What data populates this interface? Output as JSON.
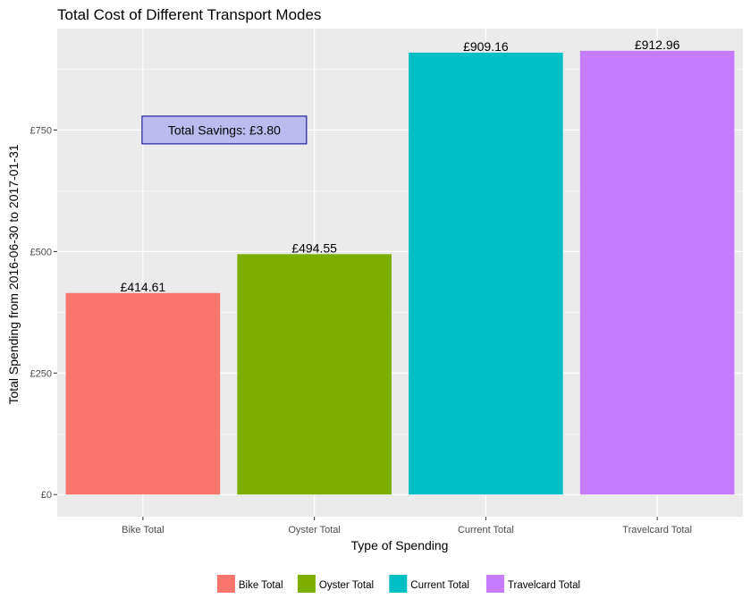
{
  "chart_data": {
    "type": "bar",
    "title": "Total Cost of Different Transport Modes",
    "xlabel": "Type of Spending",
    "ylabel": "Total Spending from 2016-06-30 to 2017-01-31",
    "categories": [
      "Bike Total",
      "Oyster Total",
      "Current Total",
      "Travelcard Total"
    ],
    "values": [
      414.61,
      494.55,
      909.16,
      912.96
    ],
    "value_labels": [
      "£414.61",
      "£494.55",
      "£909.16",
      "£912.96"
    ],
    "colors": [
      "#F8766D",
      "#7CAE00",
      "#00BFC4",
      "#C77CFF"
    ],
    "ylim": [
      -45.6,
      958.6
    ],
    "yticks": [
      0,
      250,
      500,
      750
    ],
    "ytick_labels": [
      "£0",
      "£250",
      "£500",
      "£750"
    ],
    "grid": true,
    "legend_position": "bottom",
    "legend": [
      "Bike Total",
      "Oyster Total",
      "Current Total",
      "Travelcard Total"
    ],
    "annotation": {
      "text": "Total Savings: £3.80",
      "x_category": "Bike Total",
      "y": 750,
      "fill": "#BBBBF0",
      "border": "#00008B"
    }
  }
}
